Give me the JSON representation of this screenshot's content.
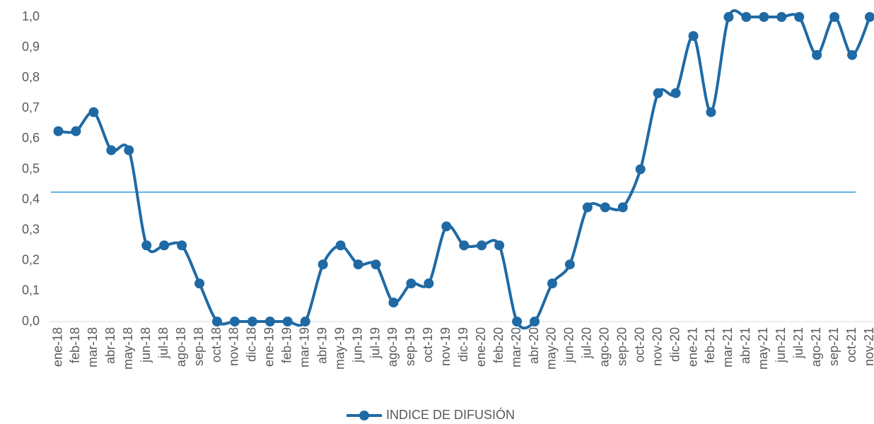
{
  "chart_data": {
    "type": "line",
    "categories": [
      "ene-18",
      "feb-18",
      "mar-18",
      "abr-18",
      "may-18",
      "jun-18",
      "jul-18",
      "ago-18",
      "sep-18",
      "oct-18",
      "nov-18",
      "dic-18",
      "ene-19",
      "feb-19",
      "mar-19",
      "abr-19",
      "may-19",
      "jun-19",
      "jul-19",
      "ago-19",
      "sep-19",
      "oct-19",
      "nov-19",
      "dic-19",
      "ene-20",
      "feb-20",
      "mar-20",
      "abr-20",
      "may-20",
      "jun-20",
      "jul-20",
      "ago-20",
      "sep-20",
      "oct-20",
      "nov-20",
      "dic-20",
      "ene-21",
      "feb-21",
      "mar-21",
      "abr-21",
      "may-21",
      "jun-21",
      "jul-21",
      "ago-21",
      "sep-21",
      "oct-21",
      "nov-21"
    ],
    "series": [
      {
        "name": "INDICE DE DIFUSIÓN",
        "color": "#1f6aa5",
        "values": [
          0.625,
          0.625,
          0.6875,
          0.5625,
          0.5625,
          0.25,
          0.25,
          0.25,
          0.125,
          0,
          0,
          0,
          0,
          0,
          0,
          0.1875,
          0.25,
          0.1875,
          0.1875,
          0.0625,
          0.125,
          0.125,
          0.3125,
          0.25,
          0.25,
          0.25,
          0,
          0,
          0.125,
          0.1875,
          0.375,
          0.375,
          0.375,
          0.5,
          0.75,
          0.75,
          0.9375,
          0.6875,
          1,
          1,
          1,
          1,
          1,
          0.875,
          1,
          0.875,
          1
        ]
      }
    ],
    "ylim": [
      0,
      1
    ],
    "yticks": [
      {
        "value": 0,
        "label": "0,0"
      },
      {
        "value": 0.1,
        "label": "0,1"
      },
      {
        "value": 0.2,
        "label": "0,2"
      },
      {
        "value": 0.3,
        "label": "0,3"
      },
      {
        "value": 0.4,
        "label": "0,4"
      },
      {
        "value": 0.5,
        "label": "0,5"
      },
      {
        "value": 0.6,
        "label": "0,6"
      },
      {
        "value": 0.7,
        "label": "0,7"
      },
      {
        "value": 0.8,
        "label": "0,8"
      },
      {
        "value": 0.9,
        "label": "0,9"
      },
      {
        "value": 1,
        "label": "1,0"
      }
    ],
    "reference_line": {
      "value": 0.425,
      "color": "#2e9be0"
    },
    "legend": "bottom"
  }
}
